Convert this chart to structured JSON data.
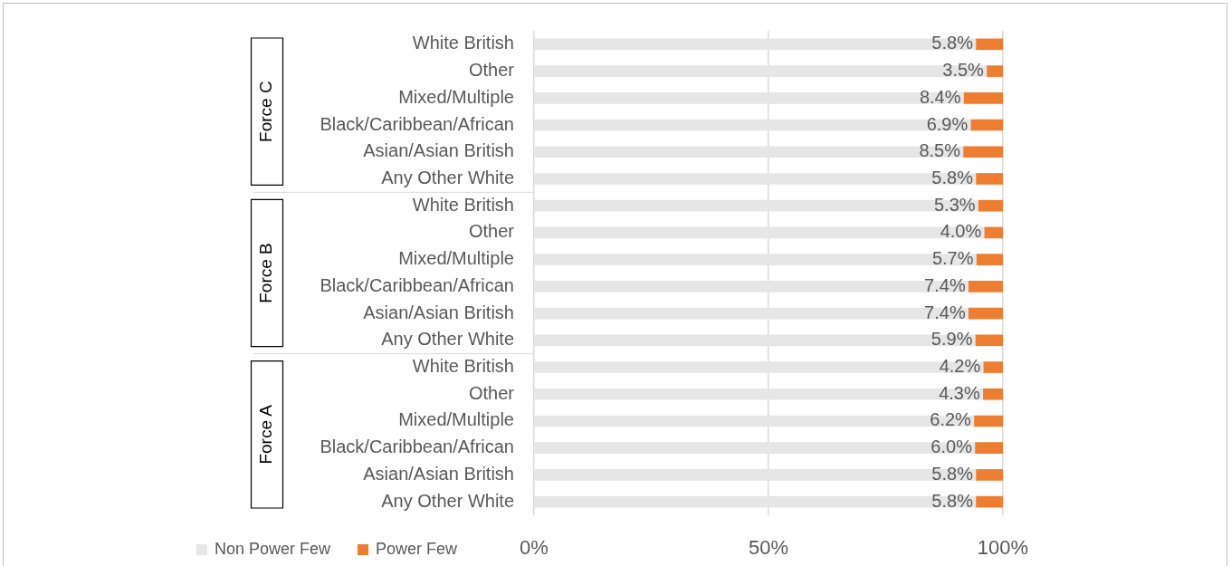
{
  "chart_data": {
    "type": "bar",
    "orientation": "horizontal",
    "stacked": true,
    "categories": [
      "White British",
      "Other",
      "Mixed/Multiple",
      "Black/Caribbean/African",
      "Asian/Asian British",
      "Any Other White",
      "White British",
      "Other",
      "Mixed/Multiple",
      "Black/Caribbean/African",
      "Asian/Asian British",
      "Any Other White",
      "White British",
      "Other",
      "Mixed/Multiple",
      "Black/Caribbean/African",
      "Asian/Asian British",
      "Any Other White"
    ],
    "series": [
      {
        "name": "Non Power Few",
        "color": "#e7e6e6",
        "values": [
          94.2,
          96.5,
          91.6,
          93.1,
          91.5,
          94.2,
          94.7,
          96.0,
          94.3,
          92.6,
          92.6,
          94.1,
          95.8,
          95.7,
          93.8,
          94.0,
          94.2,
          94.2
        ]
      },
      {
        "name": "Power Few",
        "color": "#ed7d31",
        "values": [
          5.8,
          3.5,
          8.4,
          6.9,
          8.5,
          5.8,
          5.3,
          4.0,
          5.7,
          7.4,
          7.4,
          5.9,
          4.2,
          4.3,
          6.2,
          6.0,
          5.8,
          5.8
        ],
        "value_labels": [
          "5.8%",
          "3.5%",
          "8.4%",
          "6.9%",
          "8.5%",
          "5.8%",
          "5.3%",
          "4.0%",
          "5.7%",
          "7.4%",
          "7.4%",
          "5.9%",
          "4.2%",
          "4.3%",
          "6.2%",
          "6.0%",
          "5.8%",
          "5.8%"
        ]
      }
    ],
    "xlim": [
      0,
      100
    ],
    "xticks": [
      {
        "value": 0,
        "label": "0%"
      },
      {
        "value": 50,
        "label": "50%"
      },
      {
        "value": 100,
        "label": "100%"
      }
    ],
    "grid": "x",
    "legend": "bottom left",
    "annotations": [
      "Force C",
      "Force B",
      "Force A"
    ]
  }
}
